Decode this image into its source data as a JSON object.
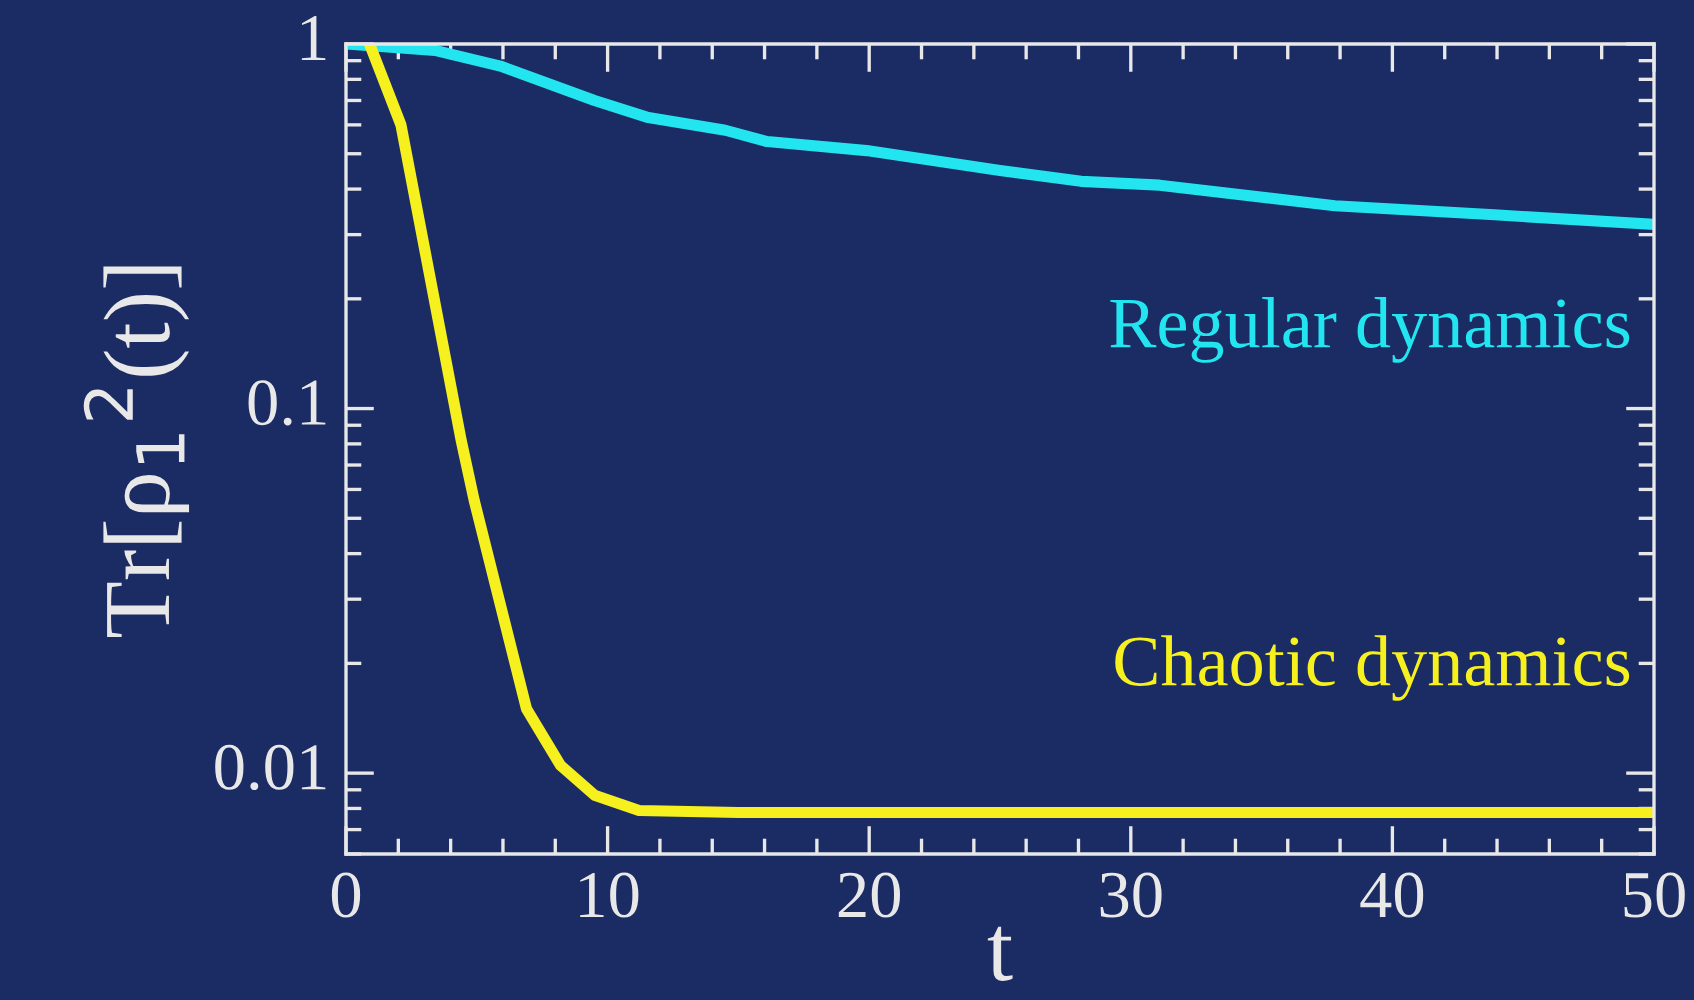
{
  "chart_data": {
    "type": "line",
    "xlabel": "t",
    "ylabel": "Tr[ρ$_{1}$$^{2}$(t)]",
    "log": "y",
    "xlim": [
      0,
      50
    ],
    "xticks": [
      0,
      10,
      20,
      30,
      40,
      50
    ],
    "ylim": [
      0.006,
      1
    ],
    "yticks": [
      {
        "value": 0.01,
        "label": "0.01"
      },
      {
        "value": 0.1,
        "label": "0.1"
      },
      {
        "value": 1,
        "label": "1"
      }
    ],
    "grid": false,
    "legend": false,
    "marker": "none",
    "line_style": "solid",
    "series": [
      {
        "name": "Regular dynamics",
        "color": "#22e5f0",
        "x": [
          0,
          3.4,
          5.9,
          9.5,
          11.5,
          14.5,
          16.1,
          19.9,
          25,
          28.1,
          31.1,
          37.8,
          43.9,
          50
        ],
        "values": [
          1,
          0.96,
          0.87,
          0.7,
          0.63,
          0.58,
          0.54,
          0.51,
          0.45,
          0.42,
          0.41,
          0.36,
          0.34,
          0.32
        ]
      },
      {
        "name": "Chaotic dynamics",
        "color": "#f5f01e",
        "x": [
          0.9,
          2.1,
          4.4,
          4.9,
          5.9,
          6.9,
          8.2,
          9.5,
          11.2,
          15,
          50
        ],
        "values": [
          1,
          0.6,
          0.082,
          0.056,
          0.029,
          0.015,
          0.0105,
          0.0087,
          0.0079,
          0.0078,
          0.0078
        ]
      }
    ]
  }
}
